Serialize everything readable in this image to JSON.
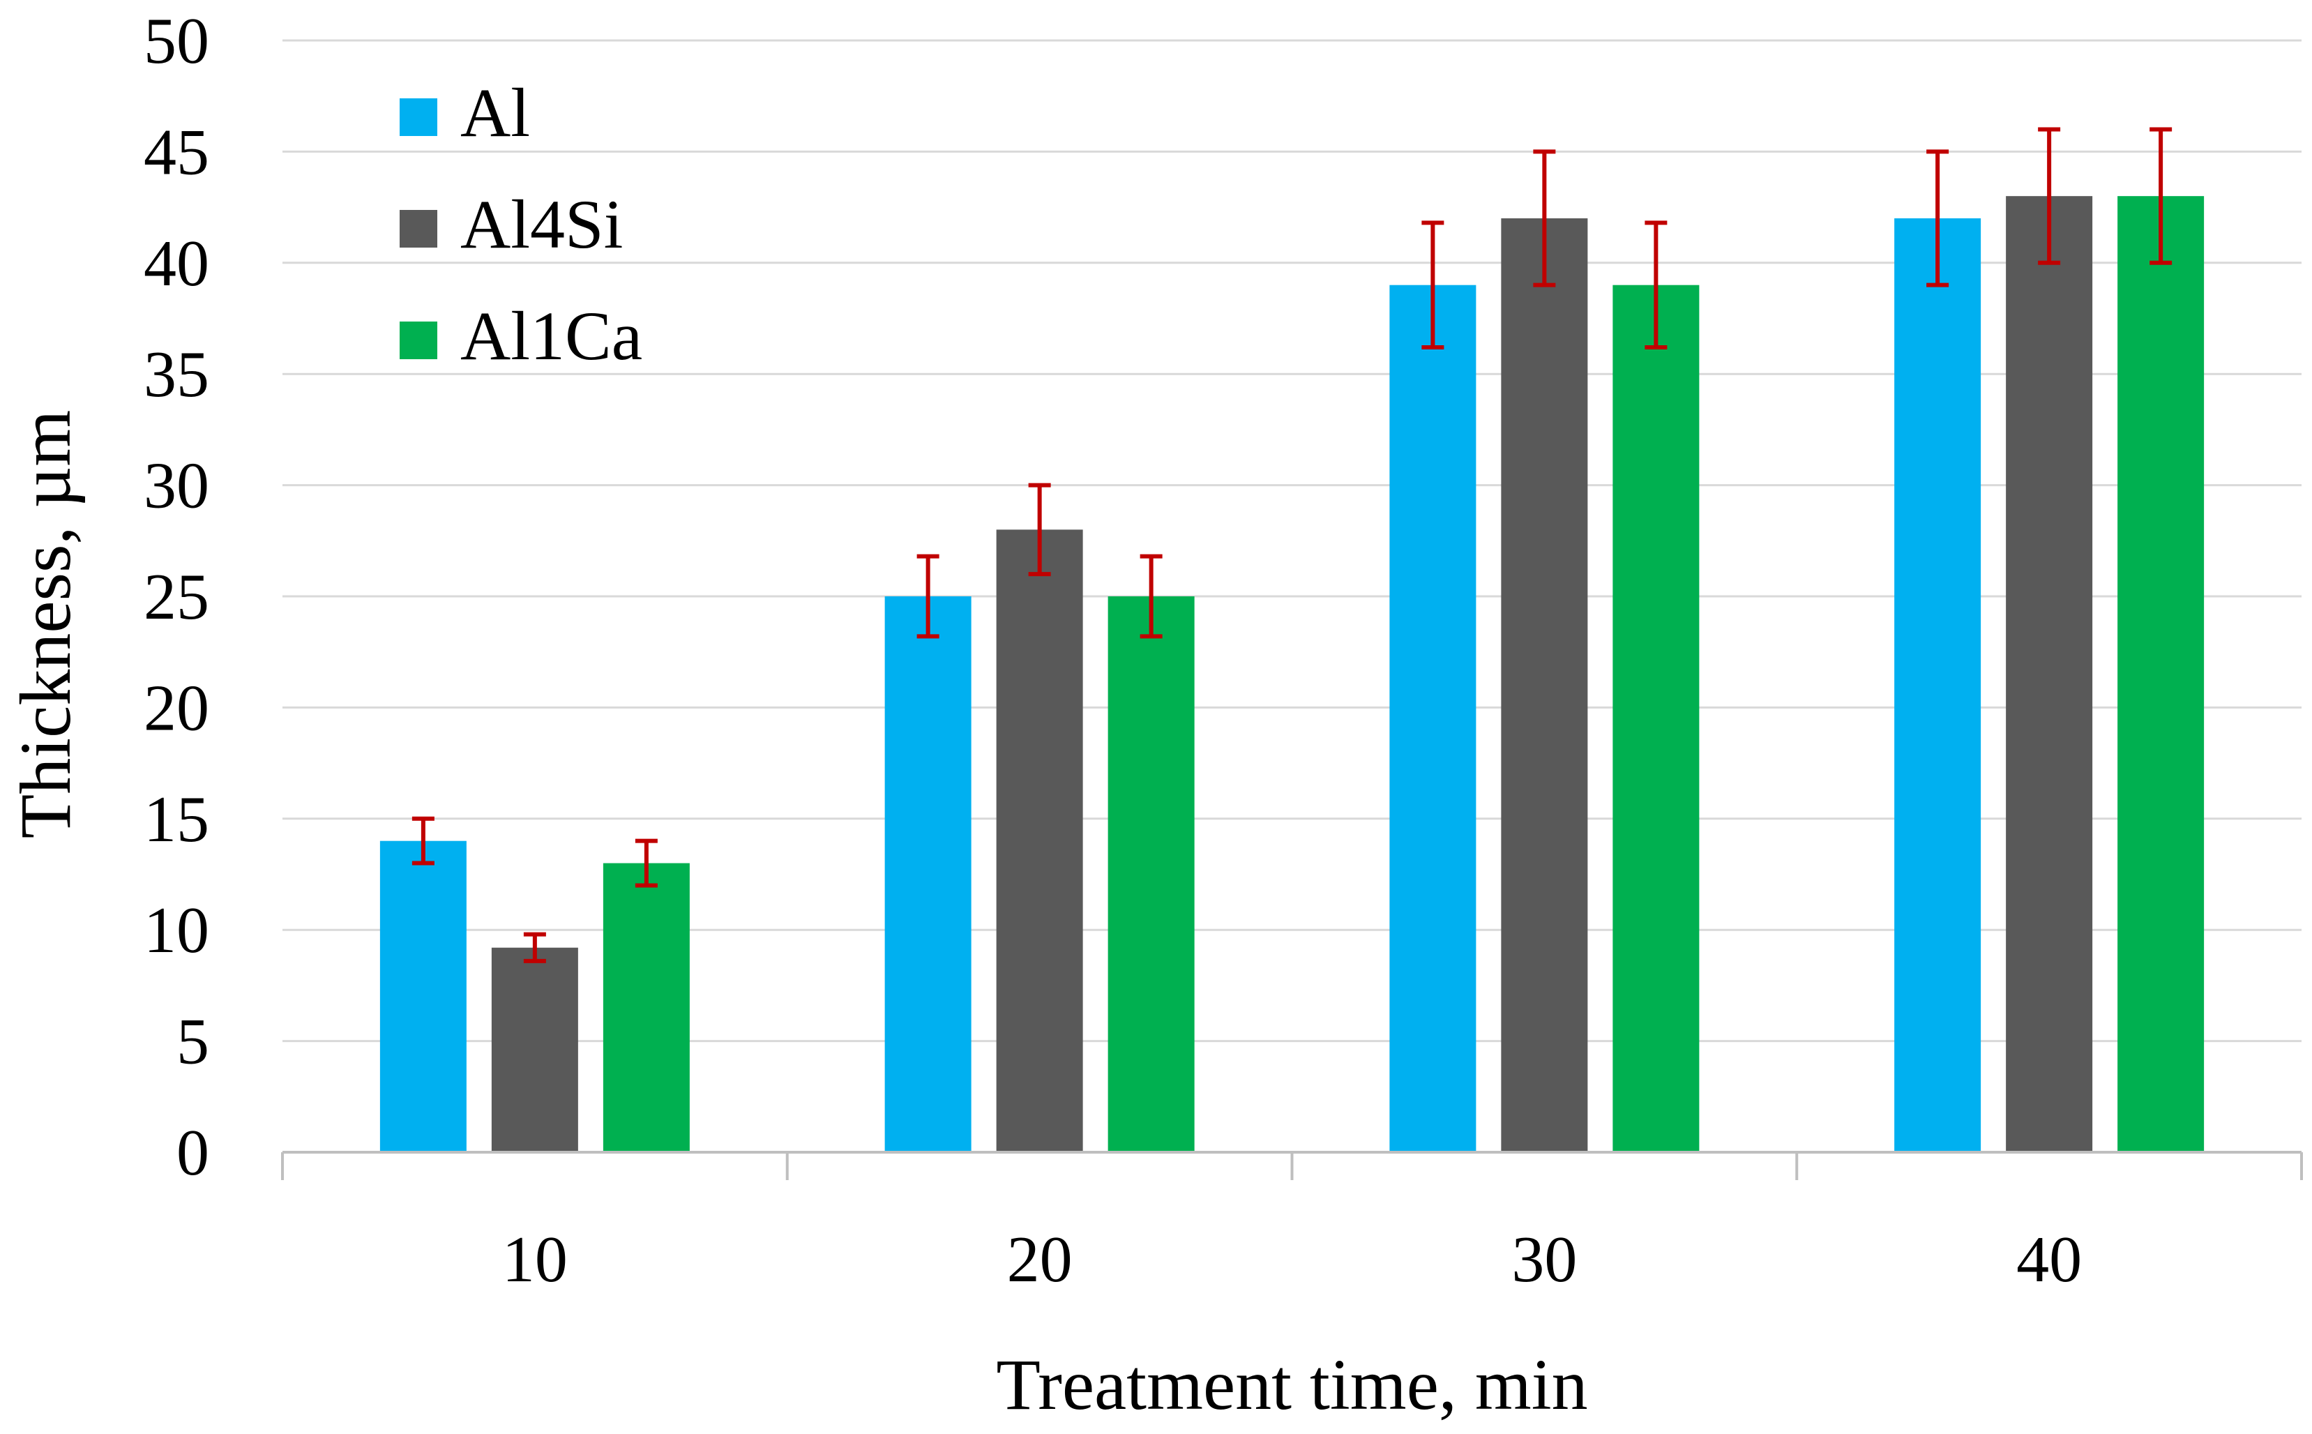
{
  "chart_data": {
    "type": "bar",
    "title": "",
    "xlabel": "Treatment time, min",
    "ylabel": "Thickness, µm",
    "categories": [
      "10",
      "20",
      "30",
      "40"
    ],
    "ylim": [
      0,
      50
    ],
    "yticks": [
      0,
      5,
      10,
      15,
      20,
      25,
      30,
      35,
      40,
      45,
      50
    ],
    "grid": true,
    "legend_position": "top-left",
    "series": [
      {
        "name": "Al",
        "color": "#00b0f0",
        "values": [
          14,
          25,
          39,
          42
        ],
        "errors": [
          1,
          1.8,
          2.8,
          3
        ]
      },
      {
        "name": "Al4Si",
        "color": "#595959",
        "values": [
          9.2,
          28,
          42,
          43
        ],
        "errors": [
          0.6,
          2,
          3,
          3
        ]
      },
      {
        "name": "Al1Ca",
        "color": "#00b050",
        "values": [
          13,
          25,
          39,
          43
        ],
        "errors": [
          1,
          1.8,
          2.8,
          3
        ]
      }
    ],
    "error_bar_color": "#c00000",
    "grid_color": "#d9d9d9",
    "axis_color": "#bfbfbf"
  }
}
